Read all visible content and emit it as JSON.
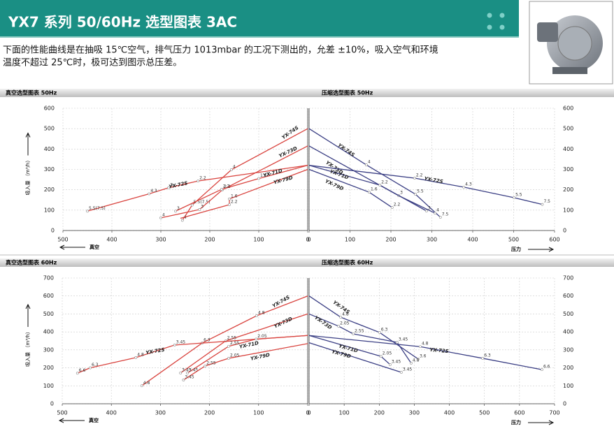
{
  "header": {
    "title": "YX7 系列 50/60Hz 选型图表 3AC",
    "text": [
      "下面的性能曲线是在抽吸 15℃空气，排气压力 1013mbar 的工况下测出的，允差 ±10%，吸入空气和环境",
      "温度不超过 25℃时，极可达到图示总压差。"
    ]
  },
  "chart_data": [
    {
      "type": "line",
      "title": "真空选型图表 50Hz",
      "xlabel": "真空",
      "ylabel": "吸入量 （m³/h）",
      "xlim": [
        500,
        0
      ],
      "xticks": [
        500,
        400,
        300,
        200,
        100,
        0
      ],
      "ylim": [
        0,
        600
      ],
      "yticks": [
        0,
        100,
        200,
        300,
        400,
        500,
        600
      ],
      "grid": true,
      "axis_side": "left",
      "series": [
        {
          "name": "YX-74S",
          "color": "#d9443f",
          "x": [
            256,
            236,
            156,
            0
          ],
          "values": [
            50,
            125,
            298,
            500
          ],
          "point_labels": [
            "4",
            "5.5(7.5)",
            "4",
            null
          ]
        },
        {
          "name": "YX-73D",
          "color": "#d9443f",
          "x": [
            300,
            221,
            174,
            0
          ],
          "values": [
            62,
            103,
            200,
            415
          ],
          "point_labels": [
            "4",
            "3",
            "2.2",
            null
          ]
        },
        {
          "name": "YX-72S",
          "color": "#d9443f",
          "x": [
            450,
            324,
            284,
            224,
            0
          ],
          "values": [
            95,
            180,
            210,
            243,
            320
          ],
          "point_labels": [
            "5.5(7.5)",
            "4.3",
            "3",
            "2.2",
            null
          ]
        },
        {
          "name": "YX-71D",
          "color": "#d9443f",
          "x": [
            270,
            176,
            100,
            0
          ],
          "values": [
            95,
            202,
            255,
            320
          ],
          "point_labels": [
            "3",
            "2.2",
            "1.6",
            null
          ]
        },
        {
          "name": "YX-79D",
          "color": "#d9443f",
          "x": [
            260,
            160,
            160,
            0
          ],
          "values": [
            60,
            127,
            155,
            300
          ],
          "point_labels": [
            null,
            "2.2",
            "1.6",
            null
          ]
        }
      ]
    },
    {
      "type": "line",
      "title": "压缩选型图表 50Hz",
      "xlabel": "压力",
      "xlim": [
        0,
        600
      ],
      "xticks": [
        0,
        100,
        200,
        300,
        400,
        500,
        600
      ],
      "ylim": [
        0,
        600
      ],
      "yticks": [
        0,
        100,
        200,
        300,
        400,
        500,
        600
      ],
      "grid": true,
      "axis_side": "right",
      "series": [
        {
          "name": "YX-74S",
          "color": "#3b3f84",
          "x": [
            0,
            140,
            260,
            321
          ],
          "values": [
            500,
            322,
            178,
            65
          ],
          "point_labels": [
            null,
            "4",
            "5.5",
            "7.5"
          ]
        },
        {
          "name": "YX-73D",
          "color": "#3b3f84",
          "x": [
            0,
            219,
            308
          ],
          "values": [
            415,
            171,
            85
          ],
          "point_labels": [
            null,
            "3",
            "4"
          ]
        },
        {
          "name": "YX-72S",
          "color": "#3b3f84",
          "x": [
            0,
            258,
            378,
            501,
            570
          ],
          "values": [
            320,
            257,
            213,
            161,
            128
          ],
          "point_labels": [
            null,
            "2.2",
            "4.3",
            "5.5",
            "7.5"
          ]
        },
        {
          "name": "YX-71D",
          "color": "#3b3f84",
          "x": [
            0,
            173,
            287
          ],
          "values": [
            320,
            223,
            96
          ],
          "point_labels": [
            null,
            "2.2",
            "3"
          ]
        },
        {
          "name": "YX-79D",
          "color": "#3b3f84",
          "x": [
            0,
            147,
            203
          ],
          "values": [
            300,
            188,
            113
          ],
          "point_labels": [
            null,
            "1.6",
            "2.2"
          ]
        }
      ]
    },
    {
      "type": "line",
      "title": "真空选型图表 60Hz",
      "xlabel": "真空",
      "ylabel": "吸入量 （m³/h）",
      "xlim": [
        500,
        0
      ],
      "xticks": [
        500,
        400,
        300,
        200,
        100,
        0
      ],
      "ylim": [
        0,
        700
      ],
      "yticks": [
        0,
        100,
        200,
        300,
        400,
        500,
        600,
        700
      ],
      "grid": true,
      "axis_side": "left",
      "series": [
        {
          "name": "YX-74S",
          "color": "#d9443f",
          "x": [
            338,
            215,
            104,
            0
          ],
          "values": [
            100,
            338,
            490,
            600
          ],
          "point_labels": [
            "4.8",
            "6.3",
            "4.8",
            null
          ]
        },
        {
          "name": "YX-73D",
          "color": "#d9443f",
          "x": [
            259,
            167,
            0
          ],
          "values": [
            171,
            350,
            500
          ],
          "point_labels": [
            "3.45",
            "2.55",
            null
          ]
        },
        {
          "name": "YX-72S",
          "color": "#d9443f",
          "x": [
            469,
            443,
            350,
            271,
            0
          ],
          "values": [
            170,
            200,
            257,
            327,
            380
          ],
          "point_labels": [
            "6.6",
            "6.3",
            "4.8",
            "3.45",
            null
          ]
        },
        {
          "name": "YX-71D",
          "color": "#d9443f",
          "x": [
            245,
            161,
            105,
            0
          ],
          "values": [
            171,
            320,
            360,
            380
          ],
          "point_labels": [
            "3.45",
            "2.55",
            "2.05",
            null
          ]
        },
        {
          "name": "YX-79D",
          "color": "#d9443f",
          "x": [
            253,
            209,
            161,
            0
          ],
          "values": [
            132,
            210,
            253,
            335
          ],
          "point_labels": [
            "3.45",
            "2.55",
            "2.05",
            null
          ]
        }
      ]
    },
    {
      "type": "line",
      "title": "压缩选型图表 60Hz",
      "xlabel": "压力",
      "xlim": [
        0,
        700
      ],
      "xticks": [
        0,
        100,
        200,
        300,
        400,
        500,
        600,
        700
      ],
      "ylim": [
        0,
        700
      ],
      "yticks": [
        0,
        100,
        200,
        300,
        400,
        500,
        600,
        700
      ],
      "grid": true,
      "axis_side": "right",
      "series": [
        {
          "name": "YX-74S",
          "color": "#3b3f84",
          "x": [
            0,
            90,
            201,
            311
          ],
          "values": [
            600,
            482,
            397,
            249
          ],
          "point_labels": [
            null,
            "4.8",
            "6.3",
            "3.6"
          ]
        },
        {
          "name": "YX-73D",
          "color": "#3b3f84",
          "x": [
            0,
            84,
            126,
            251,
            291
          ],
          "values": [
            500,
            432,
            389,
            342,
            226
          ],
          "point_labels": [
            null,
            "2.05",
            "2.55",
            "3.45",
            "4.8"
          ]
        },
        {
          "name": "YX-72S",
          "color": "#3b3f84",
          "x": [
            0,
            317,
            495,
            664
          ],
          "values": [
            380,
            318,
            253,
            190
          ],
          "point_labels": [
            null,
            "4.8",
            "6.3",
            "6.6"
          ]
        },
        {
          "name": "YX-71D",
          "color": "#3b3f84",
          "x": [
            0,
            205,
            231
          ],
          "values": [
            380,
            264,
            218
          ],
          "point_labels": [
            null,
            "2.05",
            "3.45"
          ]
        },
        {
          "name": "YX-79D",
          "color": "#3b3f84",
          "x": [
            0,
            263
          ],
          "values": [
            340,
            175
          ],
          "point_labels": [
            null,
            "3.45"
          ]
        }
      ]
    }
  ]
}
